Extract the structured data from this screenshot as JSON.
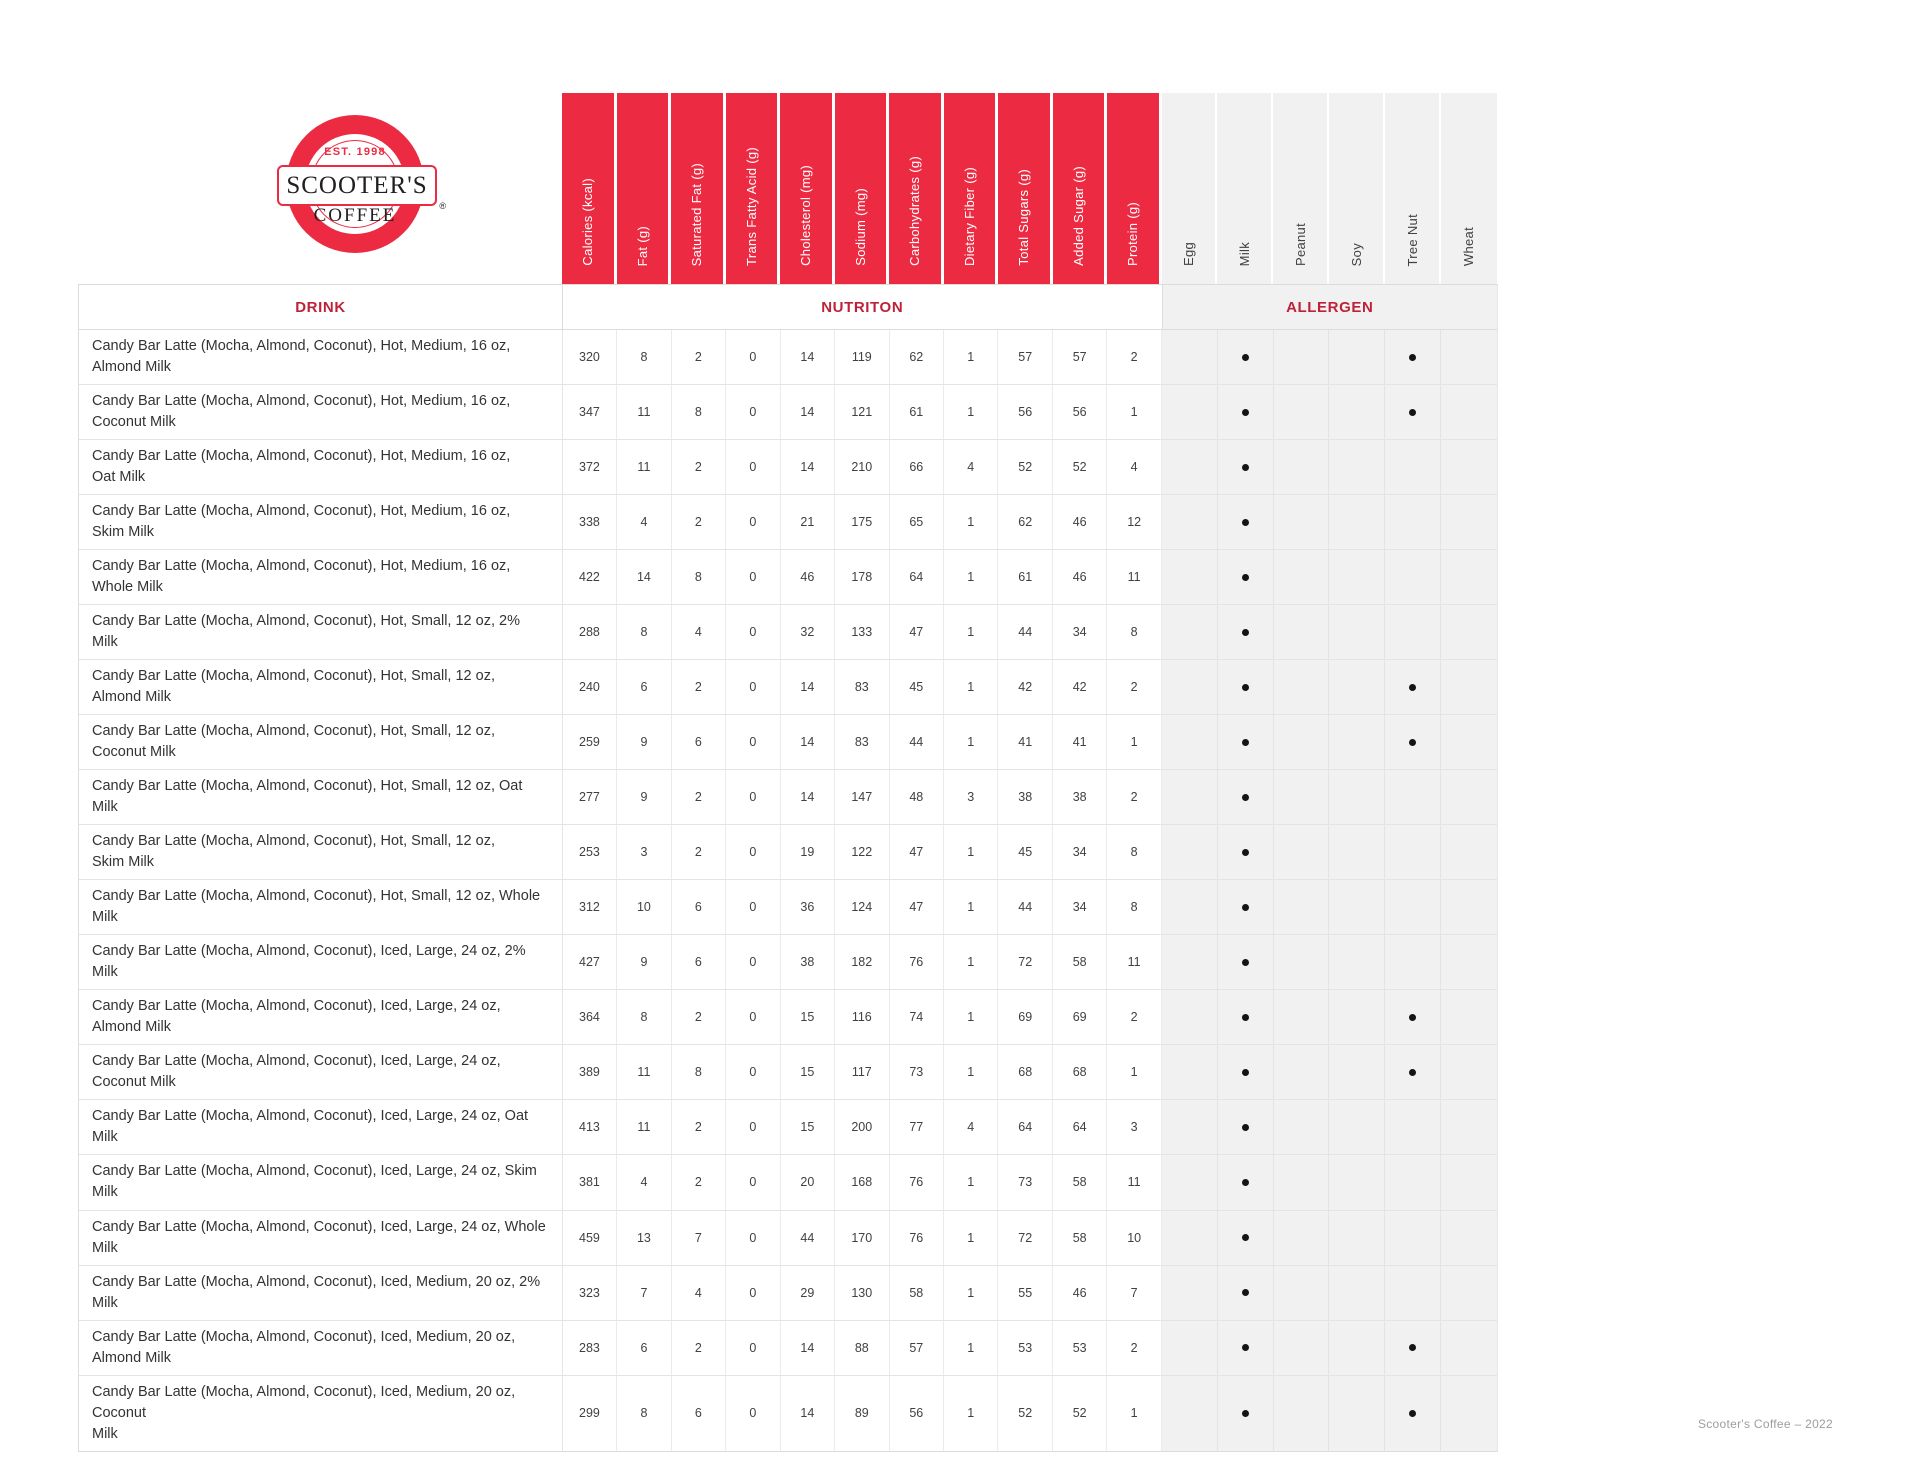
{
  "brand": {
    "est": "EST. 1998",
    "name": "SCOOTER'S",
    "name2": "COFFEE",
    "registered": "®"
  },
  "band": {
    "drink": "DRINK",
    "nutrition": "NUTRITON",
    "allergen": "ALLERGEN"
  },
  "nutrition_headers": [
    "Calories (kcal)",
    "Fat (g)",
    "Saturated Fat (g)",
    "Trans Fatty Acid (g)",
    "Cholesterol (mg)",
    "Sodium (mg)",
    "Carbohydrates (g)",
    "Dietary Fiber (g)",
    "Total Sugars (g)",
    "Added Sugar (g)",
    "Protein (g)"
  ],
  "allergen_headers": [
    "Egg",
    "Milk",
    "Peanut",
    "Soy",
    "Tree Nut",
    "Wheat"
  ],
  "footer": "Scooter's Coffee – 2022",
  "colors": {
    "brand_red": "#EC2B43",
    "band_label_red": "#BE2239",
    "allergen_bg": "#F1F1F1",
    "grid": "#E4E4E4",
    "dot": "#141414"
  },
  "rows": [
    {
      "name": "Candy Bar Latte (Mocha, Almond, Coconut), Hot, Medium, 16 oz, Almond Milk",
      "values": [
        320,
        8,
        2,
        0,
        14,
        119,
        62,
        1,
        57,
        57,
        2
      ],
      "allergens": [
        0,
        1,
        0,
        0,
        1,
        0
      ]
    },
    {
      "name": "Candy Bar Latte (Mocha, Almond, Coconut), Hot, Medium, 16 oz, Coconut Milk",
      "values": [
        347,
        11,
        8,
        0,
        14,
        121,
        61,
        1,
        56,
        56,
        1
      ],
      "allergens": [
        0,
        1,
        0,
        0,
        1,
        0
      ]
    },
    {
      "name": "Candy Bar Latte (Mocha, Almond, Coconut), Hot, Medium, 16 oz,\nOat Milk",
      "values": [
        372,
        11,
        2,
        0,
        14,
        210,
        66,
        4,
        52,
        52,
        4
      ],
      "allergens": [
        0,
        1,
        0,
        0,
        0,
        0
      ]
    },
    {
      "name": "Candy Bar Latte (Mocha, Almond, Coconut), Hot, Medium, 16 oz,\nSkim Milk",
      "values": [
        338,
        4,
        2,
        0,
        21,
        175,
        65,
        1,
        62,
        46,
        12
      ],
      "allergens": [
        0,
        1,
        0,
        0,
        0,
        0
      ]
    },
    {
      "name": "Candy Bar Latte (Mocha, Almond, Coconut), Hot, Medium, 16 oz,\nWhole Milk",
      "values": [
        422,
        14,
        8,
        0,
        46,
        178,
        64,
        1,
        61,
        46,
        11
      ],
      "allergens": [
        0,
        1,
        0,
        0,
        0,
        0
      ]
    },
    {
      "name": "Candy Bar Latte (Mocha, Almond, Coconut), Hot, Small, 12 oz, 2% Milk",
      "values": [
        288,
        8,
        4,
        0,
        32,
        133,
        47,
        1,
        44,
        34,
        8
      ],
      "allergens": [
        0,
        1,
        0,
        0,
        0,
        0
      ]
    },
    {
      "name": "Candy Bar Latte (Mocha, Almond, Coconut), Hot, Small, 12 oz,\nAlmond Milk",
      "values": [
        240,
        6,
        2,
        0,
        14,
        83,
        45,
        1,
        42,
        42,
        2
      ],
      "allergens": [
        0,
        1,
        0,
        0,
        1,
        0
      ]
    },
    {
      "name": "Candy Bar Latte (Mocha, Almond, Coconut), Hot, Small, 12 oz,\nCoconut Milk",
      "values": [
        259,
        9,
        6,
        0,
        14,
        83,
        44,
        1,
        41,
        41,
        1
      ],
      "allergens": [
        0,
        1,
        0,
        0,
        1,
        0
      ]
    },
    {
      "name": "Candy Bar Latte (Mocha, Almond, Coconut), Hot, Small, 12 oz, Oat Milk",
      "values": [
        277,
        9,
        2,
        0,
        14,
        147,
        48,
        3,
        38,
        38,
        2
      ],
      "allergens": [
        0,
        1,
        0,
        0,
        0,
        0
      ]
    },
    {
      "name": "Candy Bar Latte (Mocha, Almond, Coconut), Hot, Small, 12 oz,\nSkim Milk",
      "values": [
        253,
        3,
        2,
        0,
        19,
        122,
        47,
        1,
        45,
        34,
        8
      ],
      "allergens": [
        0,
        1,
        0,
        0,
        0,
        0
      ]
    },
    {
      "name": "Candy Bar Latte (Mocha, Almond, Coconut), Hot, Small, 12 oz, Whole Milk",
      "values": [
        312,
        10,
        6,
        0,
        36,
        124,
        47,
        1,
        44,
        34,
        8
      ],
      "allergens": [
        0,
        1,
        0,
        0,
        0,
        0
      ]
    },
    {
      "name": "Candy Bar Latte (Mocha, Almond, Coconut), Iced, Large, 24 oz, 2% Milk",
      "values": [
        427,
        9,
        6,
        0,
        38,
        182,
        76,
        1,
        72,
        58,
        11
      ],
      "allergens": [
        0,
        1,
        0,
        0,
        0,
        0
      ]
    },
    {
      "name": "Candy Bar Latte (Mocha, Almond, Coconut), Iced, Large, 24 oz, Almond Milk",
      "values": [
        364,
        8,
        2,
        0,
        15,
        116,
        74,
        1,
        69,
        69,
        2
      ],
      "allergens": [
        0,
        1,
        0,
        0,
        1,
        0
      ]
    },
    {
      "name": "Candy Bar Latte (Mocha, Almond, Coconut), Iced, Large, 24 oz, Coconut Milk",
      "values": [
        389,
        11,
        8,
        0,
        15,
        117,
        73,
        1,
        68,
        68,
        1
      ],
      "allergens": [
        0,
        1,
        0,
        0,
        1,
        0
      ]
    },
    {
      "name": "Candy Bar Latte (Mocha, Almond, Coconut), Iced, Large, 24 oz, Oat Milk",
      "values": [
        413,
        11,
        2,
        0,
        15,
        200,
        77,
        4,
        64,
        64,
        3
      ],
      "allergens": [
        0,
        1,
        0,
        0,
        0,
        0
      ]
    },
    {
      "name": "Candy Bar Latte (Mocha, Almond, Coconut), Iced, Large, 24 oz, Skim Milk",
      "values": [
        381,
        4,
        2,
        0,
        20,
        168,
        76,
        1,
        73,
        58,
        11
      ],
      "allergens": [
        0,
        1,
        0,
        0,
        0,
        0
      ]
    },
    {
      "name": "Candy Bar Latte (Mocha, Almond, Coconut), Iced, Large, 24 oz, Whole Milk",
      "values": [
        459,
        13,
        7,
        0,
        44,
        170,
        76,
        1,
        72,
        58,
        10
      ],
      "allergens": [
        0,
        1,
        0,
        0,
        0,
        0
      ]
    },
    {
      "name": "Candy Bar Latte (Mocha, Almond, Coconut), Iced, Medium, 20 oz, 2% Milk",
      "values": [
        323,
        7,
        4,
        0,
        29,
        130,
        58,
        1,
        55,
        46,
        7
      ],
      "allergens": [
        0,
        1,
        0,
        0,
        0,
        0
      ]
    },
    {
      "name": "Candy Bar Latte (Mocha, Almond, Coconut), Iced, Medium, 20 oz, Almond Milk",
      "values": [
        283,
        6,
        2,
        0,
        14,
        88,
        57,
        1,
        53,
        53,
        2
      ],
      "allergens": [
        0,
        1,
        0,
        0,
        1,
        0
      ]
    },
    {
      "name": "Candy Bar Latte (Mocha, Almond, Coconut), Iced, Medium, 20 oz, Coconut\nMilk",
      "values": [
        299,
        8,
        6,
        0,
        14,
        89,
        56,
        1,
        52,
        52,
        1
      ],
      "allergens": [
        0,
        1,
        0,
        0,
        1,
        0
      ]
    }
  ]
}
